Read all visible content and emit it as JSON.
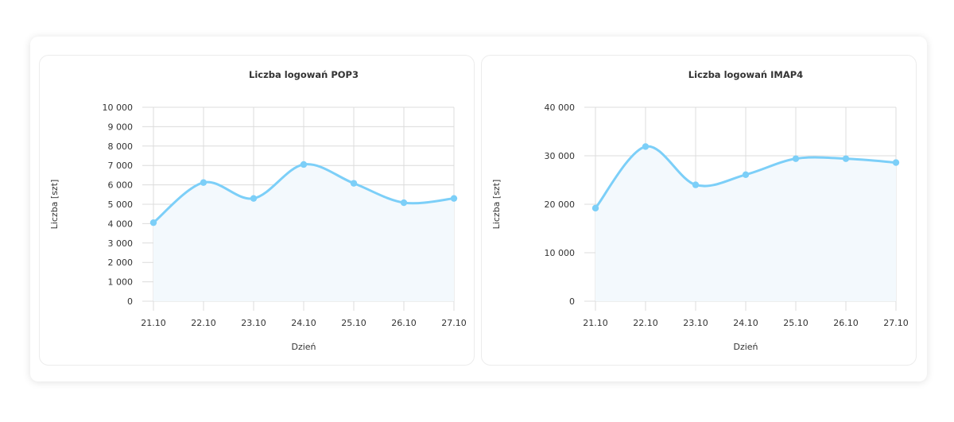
{
  "colors": {
    "line": "#7ccff8",
    "area": "#f3f9fd",
    "grid": "#dcdcdc"
  },
  "chart_data": [
    {
      "type": "area",
      "title": "Liczba logowań POP3",
      "xlabel": "Dzień",
      "ylabel": "Liczba [szt]",
      "categories": [
        "21.10",
        "22.10",
        "23.10",
        "24.10",
        "25.10",
        "26.10",
        "27.10"
      ],
      "series": [
        {
          "values": [
            4050,
            6120,
            5300,
            7050,
            6080,
            5080,
            5300
          ]
        }
      ],
      "ylim": [
        0,
        10000
      ],
      "yticks": [
        0,
        1000,
        2000,
        3000,
        4000,
        5000,
        6000,
        7000,
        8000,
        9000,
        10000
      ],
      "ytick_labels": [
        "0",
        "1 000",
        "2 000",
        "3 000",
        "4 000",
        "5 000",
        "6 000",
        "7 000",
        "8 000",
        "9 000",
        "10 000"
      ],
      "grid": true,
      "legend": "none"
    },
    {
      "type": "area",
      "title": "Liczba logowań IMAP4",
      "xlabel": "Dzień",
      "ylabel": "Liczba [szt]",
      "categories": [
        "21.10",
        "22.10",
        "23.10",
        "24.10",
        "25.10",
        "26.10",
        "27.10"
      ],
      "series": [
        {
          "values": [
            19200,
            31900,
            24000,
            26100,
            29400,
            29400,
            28600
          ]
        }
      ],
      "ylim": [
        0,
        40000
      ],
      "yticks": [
        0,
        10000,
        20000,
        30000,
        40000
      ],
      "ytick_labels": [
        "0",
        "10 000",
        "20 000",
        "30 000",
        "40 000"
      ],
      "grid": true,
      "legend": "none"
    }
  ]
}
